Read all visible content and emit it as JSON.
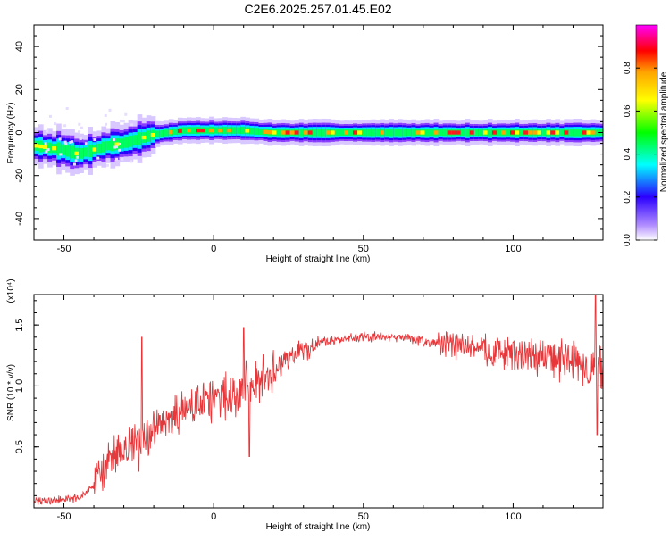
{
  "title": "C2E6.2025.257.01.45.E02",
  "chart_data": [
    {
      "type": "heatmap",
      "xlabel": "Height of straight line (km)",
      "ylabel": "Frequency (Hz)",
      "xlim": [
        -60,
        130
      ],
      "ylim": [
        -50,
        50
      ],
      "xticks": [
        -50,
        0,
        50,
        100
      ],
      "yticks": [
        -40,
        -20,
        0,
        20,
        40
      ],
      "colorbar_label": "Normalized spectral amplitude",
      "colorbar_ticks": [
        "0.0",
        "0.2",
        "0.4",
        "0.6",
        "0.8"
      ],
      "colorbar_range": [
        0,
        1
      ],
      "ridge": {
        "x": [
          -60,
          -55,
          -50,
          -45,
          -40,
          -35,
          -30,
          -25,
          -20,
          -15,
          -10,
          -5,
          0,
          10,
          20,
          40,
          60,
          80,
          100,
          115,
          130
        ],
        "freq": [
          -6,
          -7,
          -8,
          -10,
          -8,
          -6,
          -5,
          -3,
          -1,
          0,
          1,
          1,
          1,
          1,
          0,
          0,
          0,
          0,
          0,
          0,
          0
        ]
      }
    },
    {
      "type": "line",
      "xlabel": "Height of straight line (km)",
      "ylabel": "SNR (10 * v/v)",
      "y_multiplier": "(x10⁴)",
      "xlim": [
        -60,
        130
      ],
      "ylim": [
        0,
        1.75
      ],
      "xticks": [
        -50,
        0,
        50,
        100
      ],
      "yticks": [
        "0.5",
        "1.0",
        "1.5"
      ],
      "color": "#e8373a",
      "trend": {
        "x": [
          -60,
          -50,
          -45,
          -40,
          -35,
          -30,
          -25,
          -20,
          -15,
          -10,
          -5,
          0,
          5,
          10,
          15,
          20,
          25,
          30,
          35,
          40,
          45,
          50,
          55,
          60,
          65,
          70,
          75,
          80,
          85,
          90,
          95,
          100,
          105,
          110,
          115,
          120,
          125,
          130
        ],
        "y": [
          0.05,
          0.07,
          0.08,
          0.18,
          0.38,
          0.48,
          0.55,
          0.62,
          0.7,
          0.8,
          0.85,
          0.88,
          0.93,
          1.0,
          1.05,
          1.12,
          1.22,
          1.3,
          1.35,
          1.38,
          1.39,
          1.4,
          1.4,
          1.4,
          1.39,
          1.37,
          1.35,
          1.33,
          1.32,
          1.3,
          1.28,
          1.26,
          1.25,
          1.24,
          1.22,
          1.2,
          1.15,
          1.1
        ]
      },
      "spikes": [
        {
          "x": -24,
          "y": 1.4
        },
        {
          "x": -25,
          "y": 0.3
        },
        {
          "x": 10,
          "y": 1.48
        },
        {
          "x": 12,
          "y": 0.42
        },
        {
          "x": 127.5,
          "y": 1.75
        },
        {
          "x": 128,
          "y": 0.6
        }
      ]
    }
  ]
}
